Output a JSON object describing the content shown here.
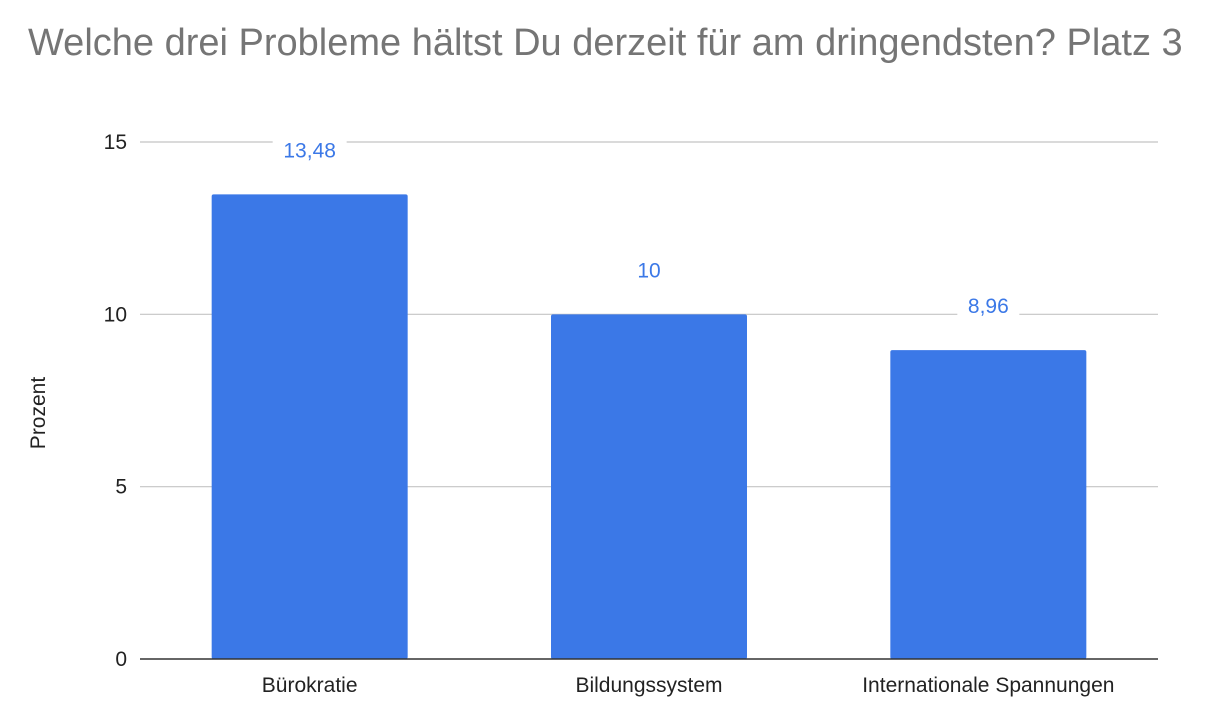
{
  "chart_data": {
    "type": "bar",
    "title": "Welche drei Probleme hältst Du derzeit für am dringendsten? Platz 3",
    "xlabel": "",
    "ylabel": "Prozent",
    "categories": [
      "Bürokratie",
      "Bildungssystem",
      "Internationale Spannungen"
    ],
    "values": [
      13.48,
      10,
      8.96
    ],
    "data_labels": [
      "13,48",
      "10",
      "8,96"
    ],
    "ylim": [
      0,
      15
    ],
    "yticks": [
      0,
      5,
      10,
      15
    ],
    "grid": true,
    "legend": "none",
    "bar_color": "#3b78e7",
    "label_color": "#3b78e7",
    "title_color": "#757575"
  }
}
